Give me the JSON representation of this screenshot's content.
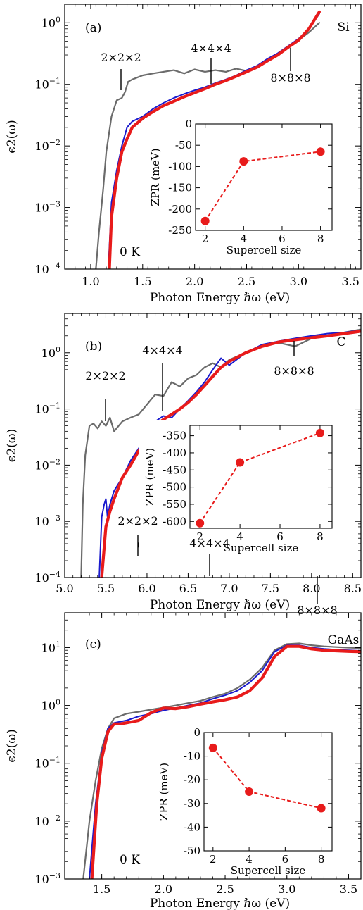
{
  "chart_data": [
    {
      "type": "line",
      "panel_label": "(a)",
      "material": "Si",
      "temperature_label": "0 K",
      "xlabel": "Photon Energy ℏω (eV)",
      "ylabel": "ϵ2(ω)",
      "xlim": [
        0.75,
        3.6
      ],
      "ylim": [
        0.0001,
        2
      ],
      "yscale": "log",
      "xticks": [
        1.0,
        1.5,
        2.0,
        2.5,
        3.0,
        3.5
      ],
      "xtick_labels": [
        "1.0",
        "1.5",
        "2.0",
        "2.5",
        "3.0",
        "3.5"
      ],
      "yticks": [
        0.0001,
        0.001,
        0.01,
        0.1,
        1
      ],
      "ytick_labels": [
        [
          "10",
          "−4"
        ],
        [
          "10",
          "−3"
        ],
        [
          "10",
          "−2"
        ],
        [
          "10",
          "−1"
        ],
        [
          "10",
          "0"
        ]
      ],
      "annotations": [
        {
          "text": "2×2×2",
          "x": 1.35,
          "y": 0.12
        },
        {
          "text": "4×4×4",
          "x": 2.2,
          "y": 0.125
        },
        {
          "text": "8×8×8",
          "x": 2.95,
          "y": 0.5
        }
      ],
      "series": [
        {
          "name": "2×2×2",
          "color": "#6b6b6b",
          "x": [
            1.05,
            1.08,
            1.12,
            1.15,
            1.2,
            1.25,
            1.3,
            1.33,
            1.36,
            1.4,
            1.5,
            1.6,
            1.7,
            1.8,
            1.9,
            2.0,
            2.1,
            2.2,
            2.3,
            2.4,
            2.5,
            2.6,
            2.7,
            2.8,
            2.9,
            3.0,
            3.1,
            3.2
          ],
          "y": [
            0.0001,
            0.0004,
            0.002,
            0.008,
            0.03,
            0.055,
            0.06,
            0.075,
            0.11,
            0.12,
            0.14,
            0.15,
            0.16,
            0.17,
            0.15,
            0.175,
            0.16,
            0.17,
            0.16,
            0.18,
            0.165,
            0.2,
            0.25,
            0.3,
            0.4,
            0.52,
            0.7,
            1.0
          ]
        },
        {
          "name": "4×4×4",
          "color": "#1a1acd",
          "x": [
            1.17,
            1.2,
            1.25,
            1.3,
            1.35,
            1.4,
            1.5,
            1.6,
            1.7,
            1.8,
            1.9,
            2.0,
            2.1,
            2.2,
            2.3,
            2.4,
            2.5,
            2.6,
            2.7,
            2.8,
            2.9,
            3.0,
            3.1,
            3.2
          ],
          "y": [
            0.0001,
            0.0012,
            0.004,
            0.01,
            0.02,
            0.025,
            0.03,
            0.04,
            0.05,
            0.06,
            0.07,
            0.08,
            0.09,
            0.105,
            0.12,
            0.14,
            0.17,
            0.2,
            0.26,
            0.32,
            0.42,
            0.55,
            0.8,
            1.4
          ]
        },
        {
          "name": "8×8×8",
          "color": "#e81b1b",
          "x": [
            1.18,
            1.2,
            1.25,
            1.3,
            1.35,
            1.4,
            1.5,
            1.6,
            1.7,
            1.8,
            1.9,
            2.0,
            2.1,
            2.2,
            2.3,
            2.4,
            2.5,
            2.6,
            2.7,
            2.8,
            2.9,
            3.0,
            3.1,
            3.2
          ],
          "y": [
            0.0001,
            0.0007,
            0.003,
            0.008,
            0.013,
            0.02,
            0.028,
            0.036,
            0.045,
            0.053,
            0.063,
            0.073,
            0.085,
            0.1,
            0.115,
            0.135,
            0.16,
            0.19,
            0.24,
            0.3,
            0.4,
            0.52,
            0.8,
            1.5
          ]
        }
      ],
      "inset": {
        "type": "line",
        "xlabel": "Supercell size",
        "ylabel": "ZPR (meV)",
        "xlim": [
          1.5,
          8.6
        ],
        "ylim": [
          -250,
          0
        ],
        "xticks": [
          2,
          4,
          6,
          8
        ],
        "yticks": [
          0,
          -50,
          -100,
          -150,
          -200,
          -250
        ],
        "x": [
          2,
          4,
          8
        ],
        "y": [
          -228,
          -88,
          -65
        ]
      }
    },
    {
      "type": "line",
      "panel_label": "(b)",
      "material": "C",
      "temperature_label": "0 K",
      "xlabel": "Photon Energy ℏω (eV)",
      "ylabel": "ϵ2(ω)",
      "xlim": [
        5.0,
        8.6
      ],
      "ylim": [
        0.0001,
        5
      ],
      "yscale": "log",
      "xticks": [
        5.0,
        5.5,
        6.0,
        6.5,
        7.0,
        7.5,
        8.0,
        8.5
      ],
      "xtick_labels": [
        "5.0",
        "5.5",
        "6.0",
        "6.5",
        "7.0",
        "7.5",
        "8.0",
        "8.5"
      ],
      "yticks": [
        0.0001,
        0.001,
        0.01,
        0.1,
        1
      ],
      "ytick_labels": [
        [
          "10",
          "−4"
        ],
        [
          "10",
          "−3"
        ],
        [
          "10",
          "−2"
        ],
        [
          "10",
          "−1"
        ],
        [
          "10",
          "0"
        ]
      ],
      "annotations": [
        {
          "text": "2×2×2",
          "x": 5.5,
          "y": 0.05
        },
        {
          "text": "4×4×4",
          "x": 6.2,
          "y": 0.07
        },
        {
          "text": "8×8×8",
          "x": 7.8,
          "y": 1.4
        }
      ],
      "series": [
        {
          "name": "2×2×2",
          "color": "#6b6b6b",
          "x": [
            5.2,
            5.22,
            5.25,
            5.3,
            5.35,
            5.4,
            5.45,
            5.5,
            5.55,
            5.6,
            5.7,
            5.8,
            5.9,
            6.0,
            6.1,
            6.2,
            6.3,
            6.4,
            6.5,
            6.6,
            6.7,
            6.8,
            6.9,
            7.0,
            7.2,
            7.4,
            7.6,
            7.8,
            8.0,
            8.2,
            8.4,
            8.6
          ],
          "y": [
            0.0001,
            0.002,
            0.015,
            0.05,
            0.055,
            0.045,
            0.06,
            0.05,
            0.07,
            0.04,
            0.06,
            0.07,
            0.08,
            0.12,
            0.18,
            0.17,
            0.3,
            0.25,
            0.35,
            0.4,
            0.55,
            0.65,
            0.55,
            0.75,
            1.0,
            1.3,
            1.5,
            1.3,
            1.8,
            2.0,
            2.3,
            2.6
          ]
        },
        {
          "name": "4×4×4",
          "color": "#1a1acd",
          "x": [
            5.42,
            5.45,
            5.48,
            5.5,
            5.52,
            5.55,
            5.6,
            5.7,
            5.8,
            5.9,
            6.0,
            6.1,
            6.2,
            6.3,
            6.4,
            6.5,
            6.6,
            6.7,
            6.8,
            6.9,
            7.0,
            7.2,
            7.4,
            7.6,
            7.8,
            8.0,
            8.2,
            8.4,
            8.6
          ],
          "y": [
            0.0001,
            0.0012,
            0.002,
            0.0025,
            0.0012,
            0.002,
            0.0035,
            0.006,
            0.012,
            0.02,
            0.035,
            0.06,
            0.075,
            0.07,
            0.1,
            0.14,
            0.2,
            0.3,
            0.5,
            0.8,
            0.6,
            1.0,
            1.4,
            1.6,
            1.8,
            2.0,
            2.2,
            2.3,
            2.5
          ]
        },
        {
          "name": "8×8×8",
          "color": "#e81b1b",
          "x": [
            5.45,
            5.5,
            5.55,
            5.6,
            5.7,
            5.8,
            5.9,
            6.0,
            6.1,
            6.2,
            6.3,
            6.4,
            6.5,
            6.6,
            6.7,
            6.8,
            6.9,
            7.0,
            7.2,
            7.4,
            7.6,
            7.8,
            8.0,
            8.2,
            8.4,
            8.6
          ],
          "y": [
            0.0001,
            0.0008,
            0.0015,
            0.0025,
            0.006,
            0.01,
            0.018,
            0.03,
            0.05,
            0.065,
            0.08,
            0.1,
            0.13,
            0.18,
            0.26,
            0.38,
            0.55,
            0.7,
            1.0,
            1.3,
            1.55,
            1.7,
            1.85,
            2.0,
            2.2,
            2.4
          ]
        }
      ],
      "inset": {
        "type": "line",
        "xlabel": "Supercell size",
        "ylabel": "ZPR (meV)",
        "xlim": [
          1.5,
          8.6
        ],
        "ylim": [
          -620,
          -320
        ],
        "xticks": [
          2,
          4,
          6,
          8
        ],
        "yticks": [
          -300,
          -350,
          -400,
          -450,
          -500,
          -550,
          -600
        ],
        "x": [
          2,
          4,
          8
        ],
        "y": [
          -605,
          -428,
          -342
        ]
      }
    },
    {
      "type": "line",
      "panel_label": "(c)",
      "material": "GaAs",
      "temperature_label": "0 K",
      "xlabel": "Photon Energy ℏω (eV)",
      "ylabel": "ϵ2(ω)",
      "xlim": [
        1.2,
        3.6
      ],
      "ylim": [
        0.001,
        40
      ],
      "yscale": "log",
      "xticks": [
        1.5,
        2.0,
        2.5,
        3.0,
        3.5
      ],
      "xtick_labels": [
        "1.5",
        "2.0",
        "2.5",
        "3.0",
        "3.5"
      ],
      "yticks": [
        0.001,
        0.01,
        0.1,
        1,
        10
      ],
      "ytick_labels": [
        [
          "10",
          "−3"
        ],
        [
          "10",
          "−2"
        ],
        [
          "10",
          "−1"
        ],
        [
          "10",
          "0"
        ],
        [
          "10",
          "1"
        ]
      ],
      "annotations": [
        {
          "text": "2×2×2",
          "x": 1.8,
          "y": 0.78
        },
        {
          "text": "4×4×4",
          "x": 2.4,
          "y": 1.5
        },
        {
          "text": "8×8×8",
          "x": 3.3,
          "y": 9.0
        }
      ],
      "series": [
        {
          "name": "2×2×2",
          "color": "#6b6b6b",
          "x": [
            1.35,
            1.4,
            1.45,
            1.5,
            1.55,
            1.6,
            1.7,
            1.8,
            1.9,
            2.0,
            2.1,
            2.2,
            2.3,
            2.4,
            2.5,
            2.6,
            2.7,
            2.8,
            2.9,
            3.0,
            3.1,
            3.2,
            3.3,
            3.4,
            3.5,
            3.6
          ],
          "y": [
            0.001,
            0.01,
            0.05,
            0.18,
            0.4,
            0.6,
            0.72,
            0.78,
            0.85,
            0.92,
            1.0,
            1.1,
            1.2,
            1.4,
            1.6,
            2.0,
            2.8,
            4.5,
            9.0,
            11.5,
            11.8,
            11.0,
            10.5,
            10.2,
            10.0,
            9.8
          ]
        },
        {
          "name": "4×4×4",
          "color": "#1a1acd",
          "x": [
            1.4,
            1.45,
            1.5,
            1.55,
            1.6,
            1.7,
            1.8,
            1.9,
            2.0,
            2.1,
            2.2,
            2.3,
            2.4,
            2.5,
            2.6,
            2.7,
            2.8,
            2.9,
            3.0,
            3.1,
            3.2,
            3.3,
            3.4,
            3.5,
            3.6
          ],
          "y": [
            0.001,
            0.02,
            0.15,
            0.4,
            0.5,
            0.55,
            0.65,
            0.72,
            0.82,
            0.9,
            1.0,
            1.1,
            1.3,
            1.5,
            1.8,
            2.5,
            4.0,
            8.5,
            11.0,
            11.0,
            10.0,
            9.5,
            9.2,
            9.0,
            8.8
          ]
        },
        {
          "name": "8×8×8",
          "color": "#e81b1b",
          "x": [
            1.42,
            1.46,
            1.5,
            1.55,
            1.6,
            1.65,
            1.7,
            1.8,
            1.9,
            2.0,
            2.1,
            2.2,
            2.3,
            2.4,
            2.5,
            2.6,
            2.7,
            2.8,
            2.9,
            3.0,
            3.1,
            3.2,
            3.3,
            3.4,
            3.5,
            3.6
          ],
          "y": [
            0.001,
            0.02,
            0.12,
            0.35,
            0.48,
            0.48,
            0.5,
            0.55,
            0.75,
            0.9,
            0.88,
            0.95,
            1.05,
            1.15,
            1.25,
            1.4,
            1.8,
            3.0,
            7.0,
            10.5,
            10.5,
            9.5,
            9.0,
            8.8,
            8.6,
            8.5
          ]
        }
      ],
      "inset": {
        "type": "line",
        "xlabel": "Supercell size",
        "ylabel": "ZPR (meV)",
        "xlim": [
          1.5,
          8.6
        ],
        "ylim": [
          -50,
          0
        ],
        "xticks": [
          2,
          4,
          6,
          8
        ],
        "yticks": [
          0,
          -10,
          -20,
          -30,
          -40,
          -50
        ],
        "x": [
          2,
          4,
          8
        ],
        "y": [
          -6.5,
          -25,
          -32
        ]
      }
    }
  ]
}
